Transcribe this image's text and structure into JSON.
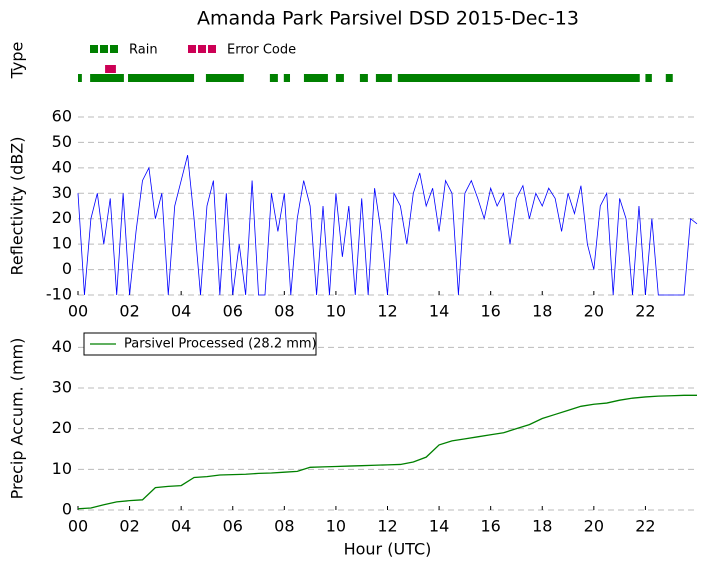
{
  "title": "Amanda Park Parsivel DSD 2015-Dec-13",
  "chart_data": [
    {
      "type": "timeline",
      "ylabel": "Type",
      "xlim": [
        0,
        24
      ],
      "series": [
        {
          "name": "Rain",
          "color": "#008000",
          "intervals": [
            [
              0,
              0.15
            ],
            [
              0.47,
              1.78
            ],
            [
              1.94,
              4.5
            ],
            [
              4.96,
              6.43
            ],
            [
              7.44,
              7.75
            ],
            [
              7.98,
              8.22
            ],
            [
              8.76,
              9.69
            ],
            [
              10.0,
              10.31
            ],
            [
              10.93,
              11.24
            ],
            [
              11.55,
              12.17
            ],
            [
              12.4,
              21.78
            ],
            [
              22.0,
              22.25
            ],
            [
              22.79,
              23.06
            ]
          ]
        },
        {
          "name": "Error Code",
          "color": "#cc0055",
          "intervals": [
            [
              1.05,
              1.47
            ]
          ]
        }
      ]
    },
    {
      "type": "line",
      "ylabel": "Reflectivity (dBZ)",
      "color": "#0000ff",
      "xlim": [
        0,
        24
      ],
      "ylim": [
        -10,
        60
      ],
      "grid": true,
      "yticks": [
        -10,
        0,
        10,
        20,
        30,
        40,
        50,
        60
      ],
      "xticks": [
        {
          "value": 0,
          "label": "00"
        },
        {
          "value": 2,
          "label": "02"
        },
        {
          "value": 4,
          "label": "04"
        },
        {
          "value": 6,
          "label": "06"
        },
        {
          "value": 8,
          "label": "08"
        },
        {
          "value": 10,
          "label": "10"
        },
        {
          "value": 12,
          "label": "12"
        },
        {
          "value": 14,
          "label": "14"
        },
        {
          "value": 16,
          "label": "16"
        },
        {
          "value": 18,
          "label": "18"
        },
        {
          "value": 20,
          "label": "20"
        },
        {
          "value": 22,
          "label": "22"
        }
      ],
      "x": [
        0,
        0.25,
        0.5,
        0.75,
        1,
        1.25,
        1.5,
        1.75,
        2,
        2.25,
        2.5,
        2.75,
        3,
        3.25,
        3.5,
        3.75,
        4,
        4.25,
        4.5,
        4.75,
        5,
        5.25,
        5.5,
        5.75,
        6,
        6.25,
        6.5,
        6.75,
        7,
        7.25,
        7.5,
        7.75,
        8,
        8.25,
        8.5,
        8.75,
        9,
        9.25,
        9.5,
        9.75,
        10,
        10.25,
        10.5,
        10.75,
        11,
        11.25,
        11.5,
        11.75,
        12,
        12.25,
        12.5,
        12.75,
        13,
        13.25,
        13.5,
        13.75,
        14,
        14.25,
        14.5,
        14.75,
        15,
        15.25,
        15.5,
        15.75,
        16,
        16.25,
        16.5,
        16.75,
        17,
        17.25,
        17.5,
        17.75,
        18,
        18.25,
        18.5,
        18.75,
        19,
        19.25,
        19.5,
        19.75,
        20,
        20.25,
        20.5,
        20.75,
        21,
        21.25,
        21.5,
        21.75,
        22,
        22.25,
        22.5,
        22.75,
        23,
        23.25,
        23.5,
        23.75,
        24
      ],
      "values": [
        30,
        -10,
        20,
        30,
        10,
        28,
        -10,
        30,
        -10,
        15,
        35,
        40,
        20,
        30,
        -10,
        25,
        35,
        45,
        20,
        -10,
        25,
        35,
        -10,
        30,
        -10,
        10,
        -10,
        35,
        -10,
        -10,
        30,
        15,
        30,
        -10,
        20,
        35,
        25,
        -10,
        25,
        -10,
        30,
        5,
        25,
        -10,
        28,
        -10,
        32,
        15,
        -10,
        30,
        25,
        10,
        30,
        38,
        25,
        32,
        15,
        35,
        30,
        -10,
        30,
        35,
        28,
        20,
        32,
        25,
        30,
        10,
        28,
        33,
        20,
        30,
        25,
        32,
        28,
        15,
        30,
        22,
        33,
        10,
        0,
        25,
        30,
        -10,
        28,
        20,
        -10,
        25,
        -10,
        20,
        -10,
        -10,
        -10,
        -10,
        -10,
        20,
        18
      ]
    },
    {
      "type": "line",
      "ylabel": "Precip Accum. (mm)",
      "xlabel": "Hour (UTC)",
      "xlim": [
        0,
        24
      ],
      "ylim": [
        0,
        45
      ],
      "grid": true,
      "yticks": [
        0,
        10,
        20,
        30,
        40
      ],
      "xticks": [
        {
          "value": 0,
          "label": "00"
        },
        {
          "value": 2,
          "label": "02"
        },
        {
          "value": 4,
          "label": "04"
        },
        {
          "value": 6,
          "label": "06"
        },
        {
          "value": 8,
          "label": "08"
        },
        {
          "value": 10,
          "label": "10"
        },
        {
          "value": 12,
          "label": "12"
        },
        {
          "value": 14,
          "label": "14"
        },
        {
          "value": 16,
          "label": "16"
        },
        {
          "value": 18,
          "label": "18"
        },
        {
          "value": 20,
          "label": "20"
        },
        {
          "value": 22,
          "label": "22"
        }
      ],
      "x": [
        0,
        0.5,
        1,
        1.5,
        2,
        2.5,
        3,
        3.5,
        4,
        4.5,
        5,
        5.5,
        6,
        6.5,
        7,
        7.5,
        8,
        8.5,
        9,
        9.5,
        10,
        10.5,
        11,
        11.5,
        12,
        12.5,
        13,
        13.5,
        14,
        14.5,
        15,
        15.5,
        16,
        16.5,
        17,
        17.5,
        18,
        18.5,
        19,
        19.5,
        20,
        20.5,
        21,
        21.5,
        22,
        22.5,
        23,
        23.5,
        24
      ],
      "series": [
        {
          "name": "Parsivel Processed (28.2 mm)",
          "color": "#008000",
          "values": [
            0.3,
            0.5,
            1.3,
            2,
            2.3,
            2.5,
            5.5,
            5.8,
            6,
            8,
            8.2,
            8.6,
            8.7,
            8.8,
            9,
            9.1,
            9.3,
            9.5,
            10.5,
            10.6,
            10.7,
            10.8,
            10.9,
            11,
            11.1,
            11.2,
            11.8,
            13,
            16,
            17,
            17.5,
            18,
            18.5,
            19,
            20,
            21,
            22.5,
            23.5,
            24.5,
            25.5,
            26,
            26.3,
            27,
            27.5,
            27.8,
            28,
            28.1,
            28.2,
            28.2
          ]
        }
      ]
    }
  ]
}
